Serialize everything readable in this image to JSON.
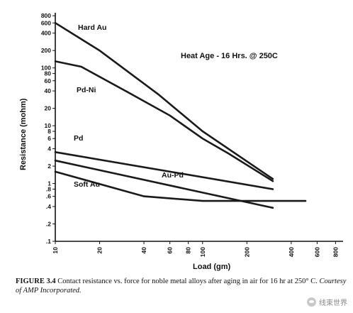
{
  "chart_data": {
    "type": "line",
    "x_scale": "log",
    "y_scale": "log",
    "xlabel": "Load (gm)",
    "ylabel": "Resistance (mohm)",
    "xlim": [
      10,
      900
    ],
    "ylim": [
      0.1,
      900
    ],
    "x_ticks": [
      10,
      20,
      40,
      60,
      80,
      100,
      200,
      400,
      600,
      800
    ],
    "y_ticks": [
      0.1,
      0.2,
      0.4,
      0.6,
      0.8,
      1,
      2,
      4,
      6,
      8,
      10,
      20,
      40,
      60,
      80,
      100,
      200,
      400,
      600,
      800
    ],
    "y_tick_labels": [
      ".1",
      ".2",
      ".4",
      ".6",
      ".8",
      "1",
      "2",
      "4",
      "6",
      "8",
      "10",
      "20",
      "40",
      "60",
      "80",
      "100",
      "200",
      "400",
      "600",
      "800"
    ],
    "annotation": "Heat Age - 16 Hrs. @ 250C",
    "grid": false,
    "series": [
      {
        "name": "Hard Au",
        "x": [
          10,
          20,
          50,
          100,
          300
        ],
        "y": [
          600,
          200,
          35,
          8,
          1.2
        ]
      },
      {
        "name": "Pd-Ni",
        "x": [
          10,
          15,
          30,
          60,
          100,
          150,
          300
        ],
        "y": [
          130,
          105,
          40,
          15,
          6,
          3.3,
          1.1
        ]
      },
      {
        "name": "Pd",
        "x": [
          10,
          300
        ],
        "y": [
          3.5,
          0.8
        ]
      },
      {
        "name": "Au-Pd",
        "x": [
          10,
          300
        ],
        "y": [
          2.5,
          0.38
        ]
      },
      {
        "name": "Soft Au",
        "x": [
          10,
          40,
          100,
          500
        ],
        "y": [
          1.6,
          0.6,
          0.5,
          0.5
        ]
      }
    ]
  },
  "caption": {
    "figure": "FIGURE 3.4",
    "text": "Contact resistance vs. force for noble metal alloys after aging in air for 16 hr at 250° C.",
    "credit": "Courtesy of AMP Incorporated."
  },
  "watermark": "线束世界"
}
